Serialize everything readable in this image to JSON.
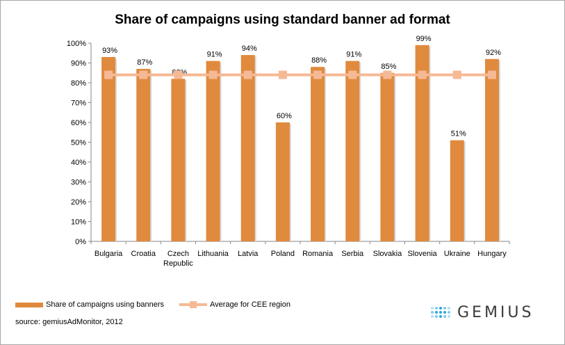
{
  "chart_data": {
    "type": "bar",
    "title": "Share of campaigns using standard banner ad format",
    "categories": [
      "Bulgaria",
      "Croatia",
      "Czech Republic",
      "Lithuania",
      "Latvia",
      "Poland",
      "Romania",
      "Serbia",
      "Slovakia",
      "Slovenia",
      "Ukraine",
      "Hungary"
    ],
    "category_lines": [
      [
        "Bulgaria"
      ],
      [
        "Croatia"
      ],
      [
        "Czech",
        "Republic"
      ],
      [
        "Lithuania"
      ],
      [
        "Latvia"
      ],
      [
        "Poland"
      ],
      [
        "Romania"
      ],
      [
        "Serbia"
      ],
      [
        "Slovakia"
      ],
      [
        "Slovenia"
      ],
      [
        "Ukraine"
      ],
      [
        "Hungary"
      ]
    ],
    "series": [
      {
        "name": "Share of campaigns using banners",
        "type": "bar",
        "color": "#E08A3E",
        "values": [
          93,
          87,
          82,
          91,
          94,
          60,
          88,
          91,
          85,
          99,
          51,
          92
        ],
        "data_labels": [
          "93%",
          "87%",
          "82%",
          "91%",
          "94%",
          "60%",
          "88%",
          "91%",
          "85%",
          "99%",
          "51%",
          "92%"
        ]
      },
      {
        "name": "Average for CEE region",
        "type": "line",
        "color": "#F6B995",
        "values": [
          84,
          84,
          84,
          84,
          84,
          84,
          84,
          84,
          84,
          84,
          84,
          84
        ]
      }
    ],
    "yticks": [
      "0%",
      "10%",
      "20%",
      "30%",
      "40%",
      "50%",
      "60%",
      "70%",
      "80%",
      "90%",
      "100%"
    ],
    "ylim": [
      0,
      100
    ],
    "grid": false,
    "legend": "bottom-left"
  },
  "source": "source: gemiusAdMonitor, 2012",
  "logo_text": "GEMIUS"
}
